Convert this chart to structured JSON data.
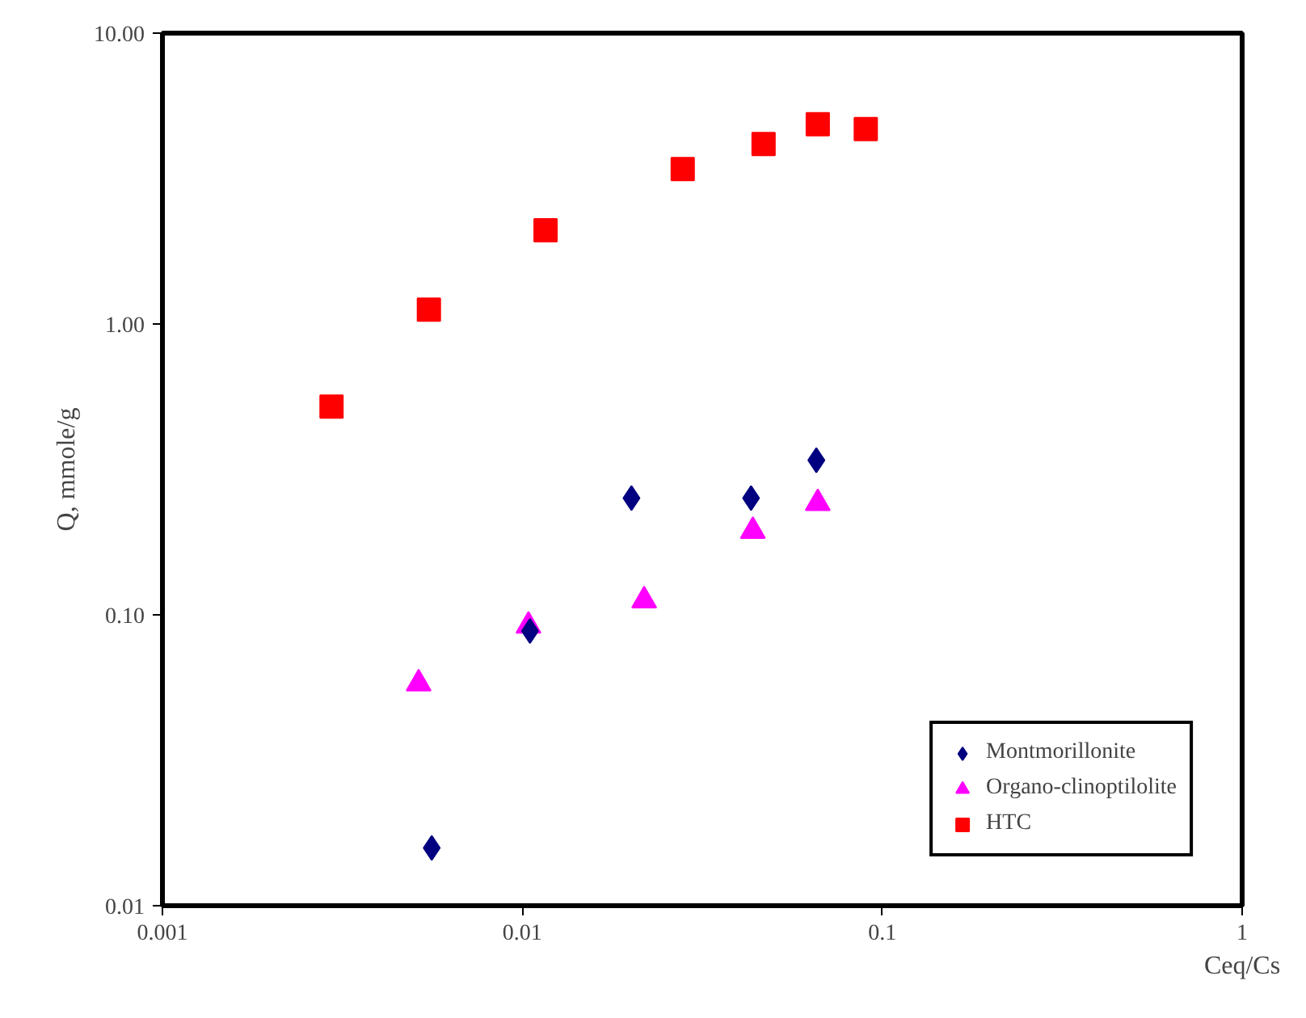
{
  "chart_data": {
    "type": "scatter",
    "xlabel": "Ceq/Cs",
    "ylabel": "Q, mmole/g",
    "log": "xy",
    "grid": false,
    "legend": "bottom right",
    "xlim": [
      0.001,
      1
    ],
    "ylim": [
      0.01,
      10
    ],
    "xticks": [
      0.001,
      0.01,
      0.1,
      1
    ],
    "yticks": [
      {
        "value": 0.01,
        "label": "0.01"
      },
      {
        "value": 0.1,
        "label": "0.10"
      },
      {
        "value": 1,
        "label": "1.00"
      },
      {
        "value": 10,
        "label": "10.00"
      }
    ],
    "series": [
      {
        "name": "Montmorillonite",
        "color": "#000080",
        "marker": "diamond",
        "x": [
          0.0056,
          0.0105,
          0.0201,
          0.0432,
          0.0656
        ],
        "values": [
          0.0158,
          0.088,
          0.252,
          0.252,
          0.34
        ]
      },
      {
        "name": "Organo-clinoptilolite",
        "color": "#ff00ff",
        "marker": "triangle",
        "x": [
          0.00515,
          0.0104,
          0.0218,
          0.0437,
          0.0662
        ],
        "values": [
          0.058,
          0.0917,
          0.112,
          0.194,
          0.242
        ]
      },
      {
        "name": "HTC",
        "color": "#ff0000",
        "marker": "square",
        "x": [
          0.00295,
          0.0055,
          0.0116,
          0.0279,
          0.0468,
          0.0662,
          0.09
        ],
        "values": [
          0.52,
          1.12,
          2.1,
          3.41,
          4.16,
          4.86,
          4.68
        ]
      }
    ]
  }
}
